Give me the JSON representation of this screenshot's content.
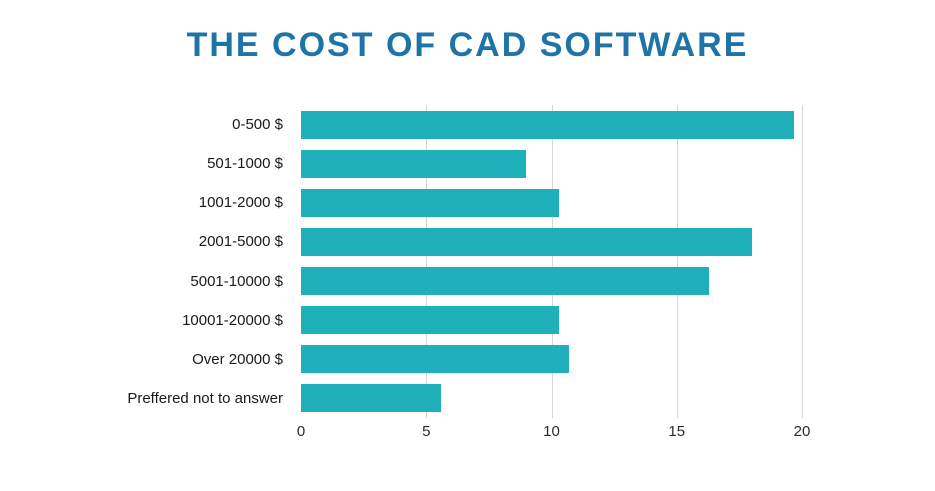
{
  "title": "THE COST OF CAD SOFTWARE",
  "colors": {
    "bar": "#1FB0BC",
    "title": "#1E74A7",
    "gridline": "#D6D6D6",
    "label": "#1A1A1A",
    "tick": "#2B2B2B",
    "background": "#FFFFFF"
  },
  "chart_data": {
    "type": "bar",
    "orientation": "horizontal",
    "title": "THE COST OF CAD SOFTWARE",
    "categories": [
      "0-500 $",
      "501-1000 $",
      "1001-2000 $",
      "2001-5000 $",
      "5001-10000 $",
      "10001-20000 $",
      "Over 20000 $",
      "Preffered not to answer"
    ],
    "values": [
      19.7,
      9.0,
      10.3,
      18.0,
      16.3,
      10.3,
      10.7,
      5.6
    ],
    "xlabel": "",
    "ylabel": "",
    "xlim": [
      0,
      20
    ],
    "xticks": [
      0,
      5,
      10,
      15,
      20
    ],
    "grid": true,
    "legend": false,
    "value_unit": "percent of respondents"
  }
}
